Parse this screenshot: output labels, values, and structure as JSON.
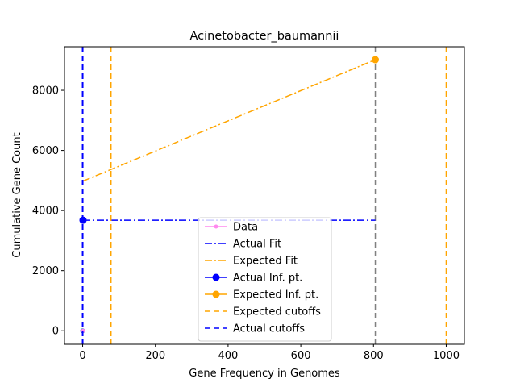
{
  "chart_data": {
    "type": "line",
    "title": "Acinetobacter_baumannii",
    "xlabel": "Gene Frequency in Genomes",
    "ylabel": "Cumulative Gene Count",
    "xlim": [
      -50,
      1050
    ],
    "ylim": [
      -450,
      9450
    ],
    "xticks": [
      0,
      200,
      400,
      600,
      800,
      1000
    ],
    "yticks": [
      0,
      2000,
      4000,
      6000,
      8000
    ],
    "grid": false,
    "legend_position": "lower-center",
    "series": [
      {
        "name": "Data",
        "kind": "line-marker",
        "color": "#ff88ee",
        "marker": "small-circle",
        "x": [
          1
        ],
        "y": [
          1
        ]
      },
      {
        "name": "Actual Fit",
        "kind": "dashdot",
        "color": "#0000ff",
        "x": [
          1,
          805
        ],
        "y": [
          3680,
          3680
        ]
      },
      {
        "name": "Expected Fit",
        "kind": "dashdot",
        "color": "#ffa500",
        "x": [
          1,
          805
        ],
        "y": [
          4980,
          9020
        ]
      },
      {
        "name": "Actual Inf. pt.",
        "kind": "marker",
        "color": "#0000ff",
        "marker": "circle",
        "x": [
          1
        ],
        "y": [
          3680
        ]
      },
      {
        "name": "Expected Inf. pt.",
        "kind": "marker",
        "color": "#ffa500",
        "marker": "circle",
        "x": [
          805
        ],
        "y": [
          9020
        ]
      },
      {
        "name": "Expected cutoffs",
        "kind": "vline-dashed",
        "color": "#ffa500",
        "x": [
          78,
          1000
        ]
      },
      {
        "name": "Actual cutoffs",
        "kind": "vline-dashed",
        "color": "#0000ff",
        "x": [
          0
        ]
      }
    ],
    "extra_marks": [
      {
        "kind": "vline-dashed",
        "color": "#808080",
        "x": 805
      },
      {
        "kind": "point",
        "color": "#1f77b4",
        "x": 0,
        "y": 0
      }
    ]
  }
}
